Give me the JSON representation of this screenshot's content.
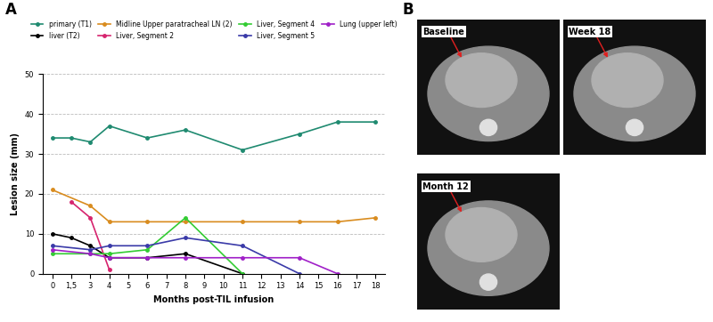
{
  "chart_data": {
    "type": "line",
    "x_label": "Months post-TIL infusion",
    "y_label": "Lesion size (mm)",
    "categories": [
      "0",
      "1,5",
      "3",
      "4",
      "5",
      "6",
      "7",
      "8",
      "9",
      "10",
      "11",
      "12",
      "13",
      "14",
      "15",
      "16",
      "17",
      "18"
    ],
    "ylim": [
      0,
      50
    ],
    "yticks": [
      0,
      10,
      20,
      30,
      40,
      50
    ],
    "grid": true,
    "legend": "upper center",
    "marker": "o",
    "series": [
      {
        "name": "primary (T1)",
        "color": "#1f8a70",
        "values": [
          34,
          34,
          33,
          37,
          null,
          34,
          null,
          36,
          null,
          null,
          31,
          null,
          null,
          35,
          null,
          38,
          null,
          38
        ]
      },
      {
        "name": "liver (T2)",
        "color": "#000000",
        "values": [
          10,
          9,
          7,
          4,
          null,
          4,
          null,
          5,
          null,
          null,
          0,
          null,
          null,
          null,
          null,
          null,
          null,
          null
        ]
      },
      {
        "name": "Midline Upper paratracheal LN (2)",
        "color": "#d98c1f",
        "values": [
          21,
          null,
          17,
          13,
          null,
          13,
          null,
          13,
          null,
          null,
          13,
          null,
          null,
          13,
          null,
          13,
          null,
          14
        ]
      },
      {
        "name": "Liver, Segment 2",
        "color": "#d6246e",
        "values": [
          null,
          18,
          14,
          1,
          null,
          null,
          null,
          null,
          null,
          null,
          null,
          null,
          null,
          null,
          null,
          null,
          null,
          null
        ]
      },
      {
        "name": "Liver, Segment 4",
        "color": "#33cc33",
        "values": [
          5,
          null,
          5,
          5,
          null,
          6,
          null,
          14,
          null,
          null,
          0,
          null,
          null,
          null,
          null,
          null,
          null,
          null
        ]
      },
      {
        "name": "Liver, Segment 5",
        "color": "#3a3aa8",
        "values": [
          7,
          null,
          6,
          7,
          null,
          7,
          null,
          9,
          null,
          null,
          7,
          null,
          null,
          0,
          null,
          null,
          null,
          null
        ]
      },
      {
        "name": "Lung (upper left)",
        "color": "#a020c8",
        "values": [
          6,
          null,
          5,
          4,
          null,
          4,
          null,
          4,
          null,
          null,
          4,
          null,
          null,
          4,
          null,
          0,
          null,
          null
        ]
      }
    ]
  },
  "panel_labels": [
    "A",
    "B"
  ],
  "images": {
    "labels": [
      "Baseline",
      "Week 18",
      "Month 12"
    ]
  }
}
